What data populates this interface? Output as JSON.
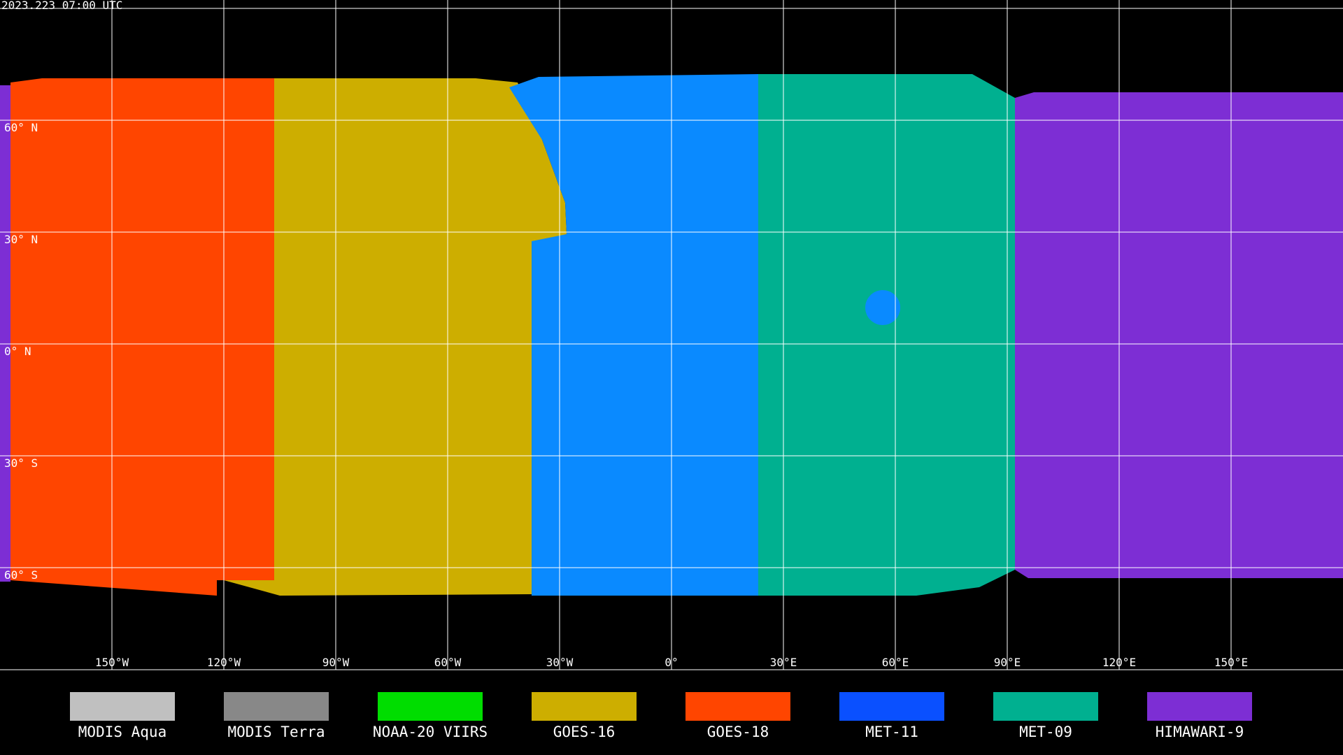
{
  "timestamp": "2023.223 07:00 UTC",
  "lat_labels": [
    "60° N",
    "30° N",
    "0° N",
    "30° S",
    "60° S"
  ],
  "lon_labels": [
    "150°W",
    "120°W",
    "90°W",
    "60°W",
    "30°W",
    "0°",
    "30°E",
    "60°E",
    "90°E",
    "120°E",
    "150°E"
  ],
  "legend": [
    {
      "label": "MODIS Aqua",
      "color": "#c0c0c0"
    },
    {
      "label": "MODIS Terra",
      "color": "#888888"
    },
    {
      "label": "NOAA-20 VIIRS",
      "color": "#00dd00"
    },
    {
      "label": "GOES-16",
      "color": "#cdae00"
    },
    {
      "label": "GOES-18",
      "color": "#ff4500"
    },
    {
      "label": "MET-11",
      "color": "#0a50ff"
    },
    {
      "label": "MET-09",
      "color": "#00b090"
    },
    {
      "label": "HIMAWARI-9",
      "color": "#7d2ed4"
    }
  ]
}
